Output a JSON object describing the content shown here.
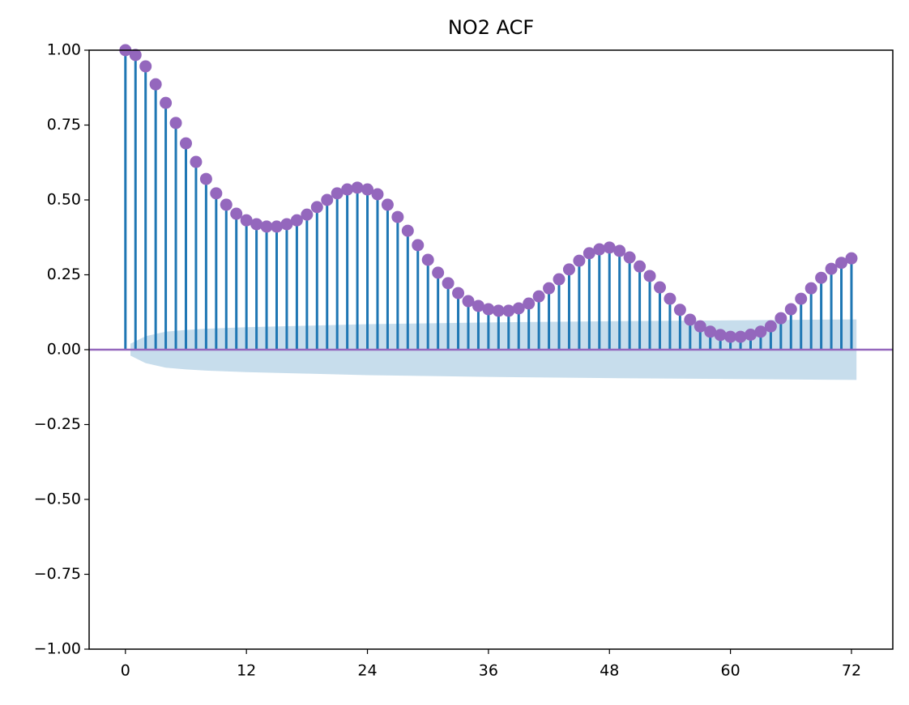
{
  "chart_data": {
    "type": "stem",
    "title": "NO2 ACF",
    "x": [
      0,
      1,
      2,
      3,
      4,
      5,
      6,
      7,
      8,
      9,
      10,
      11,
      12,
      13,
      14,
      15,
      16,
      17,
      18,
      19,
      20,
      21,
      22,
      23,
      24,
      25,
      26,
      27,
      28,
      29,
      30,
      31,
      32,
      33,
      34,
      35,
      36,
      37,
      38,
      39,
      40,
      41,
      42,
      43,
      44,
      45,
      46,
      47,
      48,
      49,
      50,
      51,
      52,
      53,
      54,
      55,
      56,
      57,
      58,
      59,
      60,
      61,
      62,
      63,
      64,
      65,
      66,
      67,
      68,
      69,
      70,
      71,
      72
    ],
    "values": [
      1.0,
      0.984,
      0.946,
      0.886,
      0.824,
      0.757,
      0.689,
      0.627,
      0.57,
      0.522,
      0.484,
      0.454,
      0.432,
      0.419,
      0.411,
      0.411,
      0.419,
      0.432,
      0.451,
      0.476,
      0.5,
      0.522,
      0.535,
      0.541,
      0.535,
      0.519,
      0.484,
      0.443,
      0.397,
      0.349,
      0.3,
      0.257,
      0.222,
      0.189,
      0.162,
      0.146,
      0.135,
      0.13,
      0.13,
      0.138,
      0.154,
      0.178,
      0.205,
      0.235,
      0.268,
      0.297,
      0.322,
      0.335,
      0.341,
      0.33,
      0.308,
      0.278,
      0.246,
      0.208,
      0.17,
      0.133,
      0.1,
      0.078,
      0.06,
      0.049,
      0.043,
      0.043,
      0.05,
      0.06,
      0.078,
      0.105,
      0.135,
      0.17,
      0.205,
      0.24,
      0.27,
      0.29,
      0.305
    ],
    "stem_color": "#1f77b4",
    "marker_color": "#9467bd",
    "zero_line_color": "#9467bd",
    "band": {
      "color": "#1f77b4",
      "x": [
        0.5,
        2,
        4,
        6,
        8,
        12,
        18,
        24,
        36,
        48,
        60,
        72.5
      ],
      "upper": [
        0.02,
        0.045,
        0.06,
        0.066,
        0.07,
        0.075,
        0.08,
        0.085,
        0.091,
        0.095,
        0.098,
        0.101
      ],
      "lower": [
        -0.02,
        -0.045,
        -0.06,
        -0.066,
        -0.07,
        -0.075,
        -0.08,
        -0.085,
        -0.091,
        -0.095,
        -0.098,
        -0.101
      ]
    },
    "xlim": [
      -3.6,
      76.1
    ],
    "ylim": [
      -1,
      1
    ],
    "xticks": [
      0,
      12,
      24,
      36,
      48,
      60,
      72
    ],
    "yticks": [
      {
        "value": -1,
        "label": "−1.00"
      },
      {
        "value": -0.75,
        "label": "−0.75"
      },
      {
        "value": -0.5,
        "label": "−0.50"
      },
      {
        "value": -0.25,
        "label": "−0.25"
      },
      {
        "value": 0,
        "label": "0.00"
      },
      {
        "value": 0.25,
        "label": "0.25"
      },
      {
        "value": 0.5,
        "label": "0.50"
      },
      {
        "value": 0.75,
        "label": "0.75"
      },
      {
        "value": 1,
        "label": "1.00"
      }
    ],
    "grid": false
  }
}
